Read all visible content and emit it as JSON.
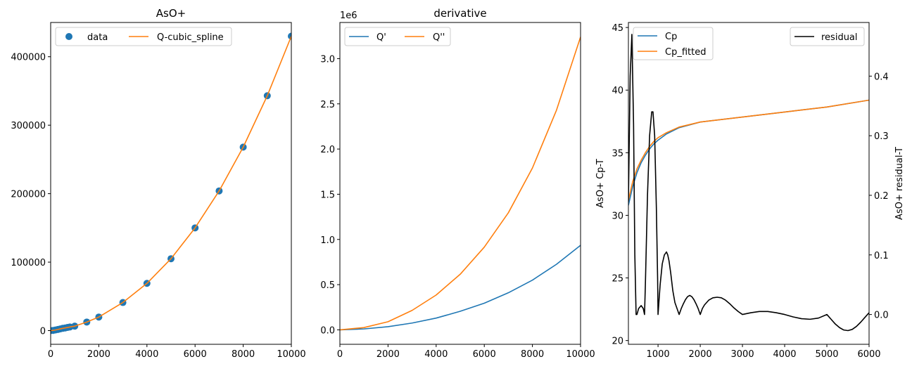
{
  "colors": {
    "blue": "#1f77b4",
    "orange": "#ff7f0e",
    "black": "#000000"
  },
  "chart_data": [
    {
      "type": "line",
      "title": "AsO+",
      "xlabel": "",
      "ylabel": "",
      "xlim": [
        0,
        10000
      ],
      "ylim": [
        -20000,
        450000
      ],
      "xticks": [
        0,
        2000,
        4000,
        6000,
        8000,
        10000
      ],
      "xtick_labels": [
        "0",
        "2000",
        "4000",
        "6000",
        "8000",
        "10000"
      ],
      "yticks": [
        0,
        100000,
        200000,
        300000,
        400000
      ],
      "ytick_labels": [
        "0",
        "100000",
        "200000",
        "300000",
        "400000"
      ],
      "legend": {
        "placement": "top-left",
        "ncol": 2
      },
      "series": [
        {
          "name": "data",
          "style": "scatter",
          "color": "#1f77b4",
          "x": [
            0,
            100,
            200,
            300,
            400,
            500,
            600,
            700,
            800,
            1000,
            1500,
            2000,
            3000,
            4000,
            5000,
            6000,
            7000,
            8000,
            9000,
            10000
          ],
          "y": [
            0,
            320,
            900,
            1650,
            2500,
            3300,
            3900,
            4600,
            5300,
            6500,
            12500,
            19800,
            41000,
            69000,
            105000,
            150000,
            204000,
            268000,
            343000,
            430000
          ]
        },
        {
          "name": "Q-cubic_spline",
          "style": "line",
          "color": "#ff7f0e",
          "x": [
            0,
            100,
            200,
            300,
            400,
            500,
            600,
            700,
            800,
            1000,
            1500,
            2000,
            3000,
            4000,
            5000,
            6000,
            7000,
            8000,
            9000,
            10000
          ],
          "y": [
            0,
            320,
            900,
            1650,
            2500,
            3300,
            3900,
            4600,
            5300,
            6500,
            12500,
            19800,
            41000,
            69000,
            105000,
            150000,
            204000,
            268000,
            343000,
            430000
          ]
        }
      ]
    },
    {
      "type": "line",
      "title": "derivative",
      "xlabel": "",
      "ylabel": "",
      "offset_text": "1e6",
      "xlim": [
        0,
        10000
      ],
      "ylim": [
        -0.16,
        3.4
      ],
      "xticks": [
        0,
        2000,
        4000,
        6000,
        8000,
        10000
      ],
      "xtick_labels": [
        "0",
        "2000",
        "4000",
        "6000",
        "8000",
        "10000"
      ],
      "yticks": [
        0,
        0.5,
        1.0,
        1.5,
        2.0,
        2.5,
        3.0
      ],
      "ytick_labels": [
        "0.0",
        "0.5",
        "1.0",
        "1.5",
        "2.0",
        "2.5",
        "3.0"
      ],
      "legend": {
        "placement": "top-left",
        "ncol": 2
      },
      "series": [
        {
          "name": "Q'",
          "style": "line",
          "color": "#1f77b4",
          "x": [
            0,
            1000,
            2000,
            3000,
            4000,
            5000,
            6000,
            7000,
            8000,
            9000,
            10000
          ],
          "y": [
            0,
            0.01,
            0.035,
            0.075,
            0.13,
            0.205,
            0.295,
            0.41,
            0.55,
            0.725,
            0.935
          ]
        },
        {
          "name": "Q''",
          "style": "line",
          "color": "#ff7f0e",
          "x": [
            0,
            1000,
            2000,
            3000,
            4000,
            5000,
            6000,
            7000,
            8000,
            9000,
            10000
          ],
          "y": [
            0,
            0.025,
            0.09,
            0.215,
            0.385,
            0.615,
            0.915,
            1.295,
            1.79,
            2.43,
            3.24
          ]
        }
      ]
    },
    {
      "type": "line",
      "title": "",
      "xlabel": "",
      "ylabel": "AsO+ Cp-T",
      "ylabel_right": "AsO+ residual-T",
      "xlim": [
        298,
        6000
      ],
      "ylim": [
        19.7,
        45.4
      ],
      "ylim_right": [
        -0.05,
        0.49
      ],
      "xticks": [
        1000,
        2000,
        3000,
        4000,
        5000,
        6000
      ],
      "xtick_labels": [
        "1000",
        "2000",
        "3000",
        "4000",
        "5000",
        "6000"
      ],
      "yticks": [
        20,
        25,
        30,
        35,
        40,
        45
      ],
      "ytick_labels": [
        "20",
        "25",
        "30",
        "35",
        "40",
        "45"
      ],
      "yticks_right": [
        0.0,
        0.1,
        0.2,
        0.3,
        0.4
      ],
      "ytick_labels_right": [
        "0.0",
        "0.1",
        "0.2",
        "0.3",
        "0.4"
      ],
      "legend": {
        "placement": "top-left"
      },
      "legend_right": {
        "placement": "top-right"
      },
      "series": [
        {
          "name": "Cp",
          "style": "line",
          "color": "#1f77b4",
          "axis": "left",
          "x": [
            298,
            400,
            500,
            600,
            700,
            800,
            900,
            1000,
            1200,
            1500,
            2000,
            3000,
            4000,
            5000,
            6000
          ],
          "y": [
            30.8,
            32.3,
            33.4,
            34.2,
            34.8,
            35.3,
            35.7,
            36.0,
            36.5,
            37.0,
            37.45,
            37.85,
            38.25,
            38.65,
            39.2
          ]
        },
        {
          "name": "Cp_fitted",
          "style": "line",
          "color": "#ff7f0e",
          "axis": "left",
          "x": [
            298,
            400,
            500,
            600,
            700,
            800,
            900,
            1000,
            1200,
            1500,
            2000,
            3000,
            4000,
            5000,
            6000
          ],
          "y": [
            31.2,
            32.7,
            33.7,
            34.4,
            35.0,
            35.5,
            35.9,
            36.2,
            36.6,
            37.05,
            37.45,
            37.85,
            38.25,
            38.65,
            39.2
          ]
        },
        {
          "name": "residual",
          "style": "line",
          "color": "#000000",
          "axis": "right",
          "x": [
            298,
            340,
            380,
            420,
            450,
            480,
            500,
            540,
            600,
            650,
            680,
            700,
            750,
            800,
            850,
            880,
            920,
            960,
            990,
            1000,
            1050,
            1100,
            1150,
            1200,
            1230,
            1260,
            1300,
            1350,
            1400,
            1450,
            1500,
            1550,
            1600,
            1650,
            1700,
            1750,
            1800,
            1850,
            1900,
            1950,
            2000,
            2050,
            2100,
            2200,
            2300,
            2400,
            2500,
            2600,
            2700,
            2800,
            2900,
            3000,
            3200,
            3400,
            3600,
            3800,
            4000,
            4200,
            4400,
            4600,
            4800,
            5000,
            5100,
            5200,
            5300,
            5400,
            5500,
            5600,
            5700,
            5800,
            5900,
            6000
          ],
          "y": [
            0.19,
            0.4,
            0.47,
            0.32,
            0.1,
            0.0,
            0.0,
            0.01,
            0.015,
            0.01,
            0.0,
            0.05,
            0.2,
            0.3,
            0.34,
            0.34,
            0.3,
            0.18,
            0.06,
            0.0,
            0.05,
            0.085,
            0.1,
            0.105,
            0.1,
            0.09,
            0.07,
            0.04,
            0.02,
            0.01,
            0.0,
            0.01,
            0.018,
            0.025,
            0.03,
            0.032,
            0.03,
            0.025,
            0.018,
            0.01,
            0.0,
            0.01,
            0.016,
            0.024,
            0.028,
            0.029,
            0.028,
            0.024,
            0.018,
            0.011,
            0.005,
            0.0,
            0.003,
            0.005,
            0.005,
            0.003,
            0.0,
            -0.004,
            -0.007,
            -0.008,
            -0.006,
            0.0,
            -0.008,
            -0.016,
            -0.022,
            -0.026,
            -0.027,
            -0.025,
            -0.02,
            -0.013,
            -0.005,
            0.003
          ]
        }
      ]
    }
  ]
}
